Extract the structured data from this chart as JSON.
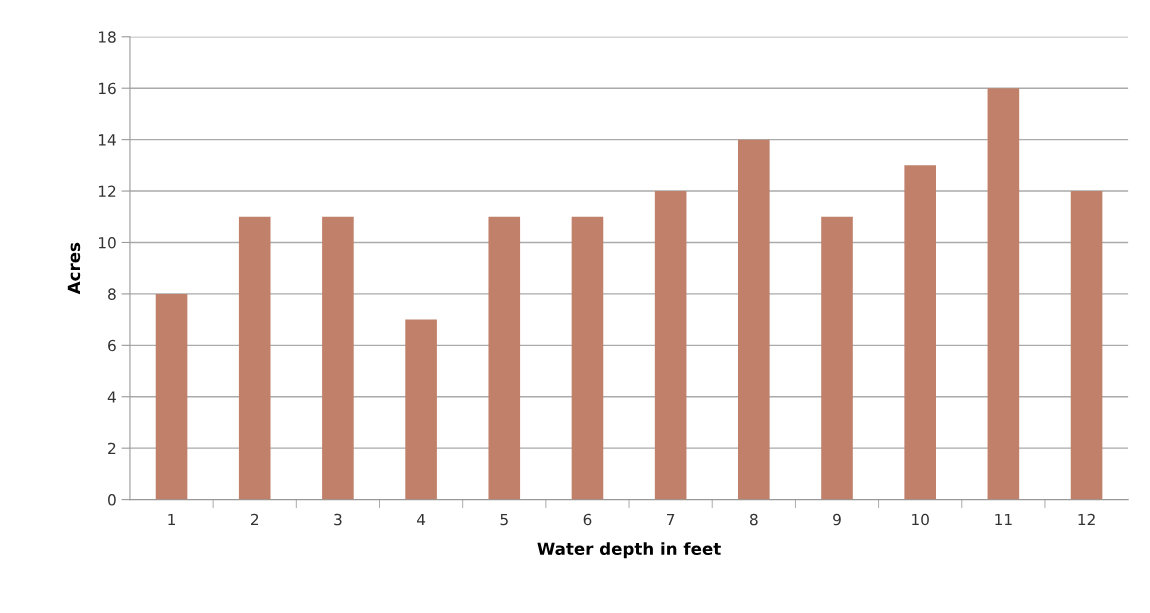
{
  "chart_data": {
    "type": "bar",
    "xlabel": "Water depth in feet",
    "ylabel": "Acres",
    "categories": [
      "1",
      "2",
      "3",
      "4",
      "5",
      "6",
      "7",
      "8",
      "9",
      "10",
      "11",
      "12"
    ],
    "values": [
      8,
      11,
      11,
      7,
      11,
      11,
      12,
      14,
      11,
      13,
      16,
      12
    ],
    "color": "#c0806a",
    "ylim": [
      0,
      18
    ],
    "yticks": [
      0,
      2,
      4,
      6,
      8,
      10,
      12,
      14,
      16,
      18
    ],
    "grid": "y"
  }
}
